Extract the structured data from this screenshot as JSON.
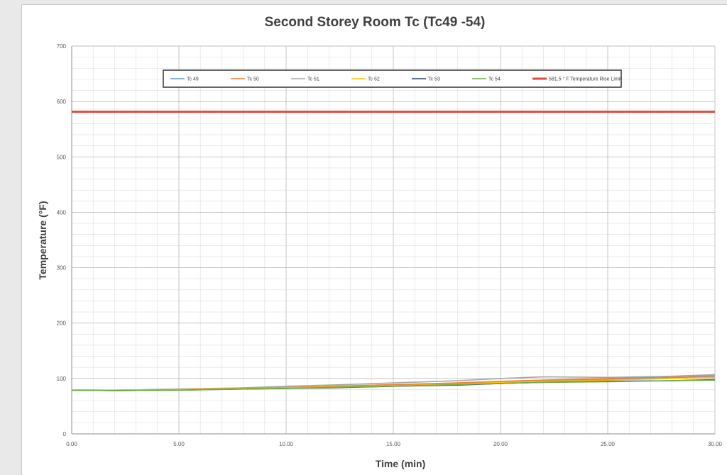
{
  "chart_data": {
    "type": "line",
    "title": "Second Storey Room Tc (Tc49 -54)",
    "xlabel": "Time (min)",
    "ylabel": "Temperature (°F)",
    "xlim": [
      0,
      30
    ],
    "ylim": [
      0,
      700
    ],
    "x_ticks": [
      "0.00",
      "5.00",
      "10.00",
      "15.00",
      "20.00",
      "25.00",
      "30.00"
    ],
    "y_ticks": [
      "0",
      "100",
      "200",
      "300",
      "400",
      "500",
      "600",
      "700"
    ],
    "grid": true,
    "legend_position": "top",
    "series": [
      {
        "name": "Tc 49",
        "color": "#5b9bd5",
        "x": [
          0,
          2,
          5,
          8,
          10,
          12,
          15,
          18,
          20,
          22,
          25,
          28,
          30
        ],
        "values": [
          79,
          79,
          80,
          82,
          83,
          85,
          88,
          91,
          94,
          96,
          98,
          101,
          103
        ]
      },
      {
        "name": "Tc 50",
        "color": "#ed7d31",
        "x": [
          0,
          2,
          5,
          8,
          10,
          12,
          15,
          18,
          20,
          22,
          25,
          28,
          30
        ],
        "values": [
          79,
          79,
          80,
          82,
          84,
          86,
          89,
          92,
          95,
          97,
          100,
          103,
          105
        ]
      },
      {
        "name": "Tc 51",
        "color": "#a5a5a5",
        "x": [
          0,
          2,
          5,
          8,
          10,
          12,
          15,
          18,
          20,
          22,
          25,
          28,
          30
        ],
        "values": [
          79,
          79,
          81,
          83,
          86,
          88,
          92,
          96,
          100,
          103,
          102,
          104,
          107
        ]
      },
      {
        "name": "Tc 52",
        "color": "#ffc000",
        "x": [
          0,
          2,
          5,
          8,
          10,
          12,
          15,
          18,
          20,
          22,
          25,
          28,
          30
        ],
        "values": [
          79,
          79,
          80,
          82,
          83,
          85,
          87,
          90,
          93,
          95,
          97,
          100,
          102
        ]
      },
      {
        "name": "Tc 53",
        "color": "#264478",
        "x": [
          0,
          2,
          5,
          8,
          10,
          12,
          15,
          18,
          20,
          22,
          25,
          28,
          30
        ],
        "values": [
          79,
          78,
          79,
          81,
          82,
          83,
          86,
          88,
          91,
          93,
          95,
          96,
          98
        ]
      },
      {
        "name": "Tc 54",
        "color": "#70ad47",
        "x": [
          0,
          2,
          5,
          8,
          10,
          12,
          15,
          18,
          20,
          22,
          25,
          28,
          30
        ],
        "values": [
          79,
          78,
          79,
          81,
          82,
          84,
          86,
          89,
          91,
          93,
          94,
          96,
          97
        ]
      },
      {
        "name": "581.5 ° F Temperature Rise Limit",
        "color": "#e04a3c",
        "x": [
          0,
          30
        ],
        "values": [
          581.5,
          581.5
        ]
      }
    ]
  }
}
